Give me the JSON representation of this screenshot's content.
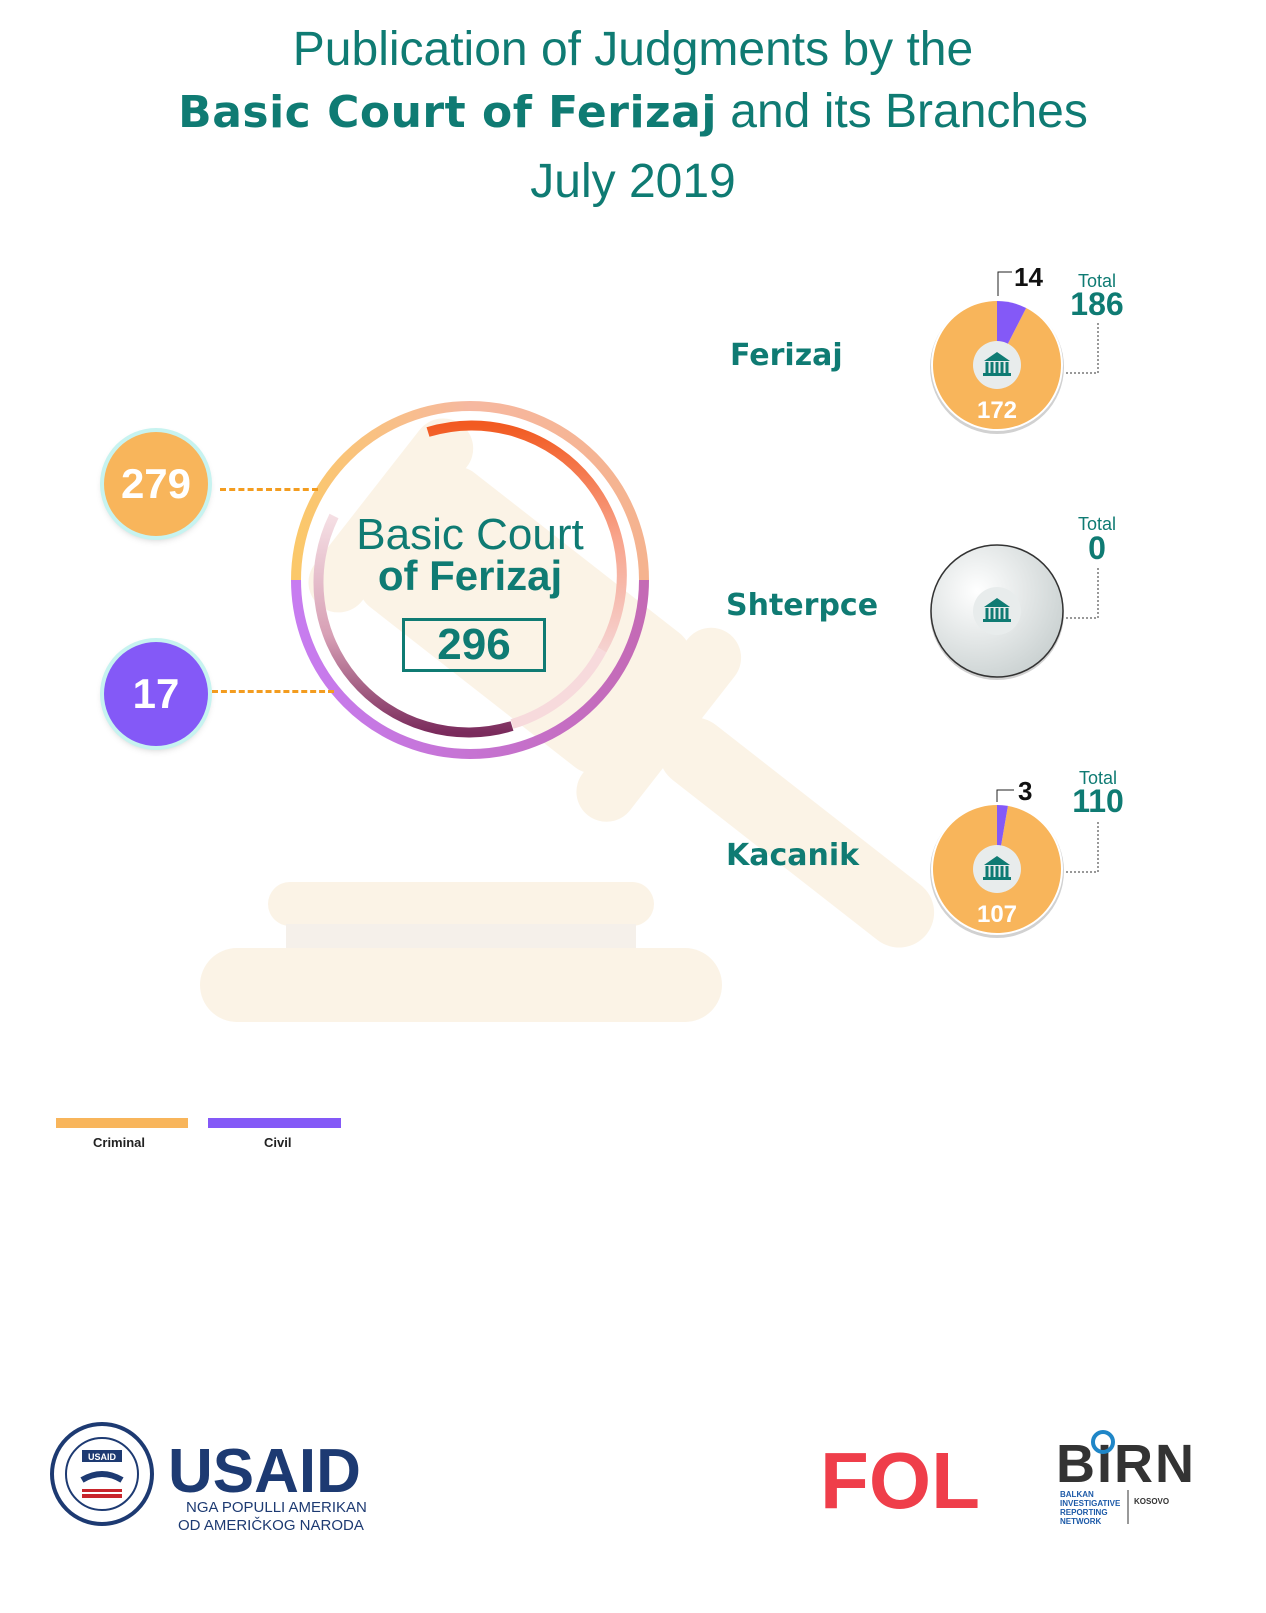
{
  "title": {
    "line1": "Publication of Judgments by the",
    "line2_bold": "Basic Court of Ferizaj",
    "line2_rest": " and its Branches",
    "line3": "July 2019"
  },
  "colors": {
    "criminal": "#f8b55b",
    "civil": "#8459f7",
    "teal": "#0f7b73"
  },
  "main_court": {
    "name_line1": "Basic Court",
    "name_line2": "of Ferizaj",
    "total": "296",
    "criminal": "279",
    "civil": "17"
  },
  "chart_data": {
    "type": "pie",
    "categories": [
      "Criminal",
      "Civil"
    ],
    "series": [
      {
        "branch": "Ferizaj",
        "values": [
          172,
          14
        ],
        "total": 186
      },
      {
        "branch": "Shterpce",
        "values": [
          0,
          0
        ],
        "total": 0
      },
      {
        "branch": "Kacanik",
        "values": [
          107,
          3
        ],
        "total": 110
      }
    ],
    "legend": [
      "Criminal",
      "Civil"
    ],
    "legend_position": "bottom-left"
  },
  "branches": [
    {
      "name": "Ferizaj",
      "criminal": "172",
      "civil": "14",
      "total_label": "Total",
      "total": "186"
    },
    {
      "name": "Shterpce",
      "criminal": "",
      "civil": "",
      "total_label": "Total",
      "total": "0"
    },
    {
      "name": "Kacanik",
      "criminal": "107",
      "civil": "3",
      "total_label": "Total",
      "total": "110"
    }
  ],
  "legend": {
    "criminal": "Criminal",
    "civil": "Civil"
  },
  "logos": {
    "usaid_word": "USAID",
    "usaid_tag1": "NGA POPULLI AMERIKAN",
    "usaid_tag2": "OD AMERIČKOG NARODA",
    "seal_badge": "USAID",
    "fol": "FOL",
    "birn": "BIRN",
    "birn_sub1": "BALKAN",
    "birn_sub2": "INVESTIGATIVE",
    "birn_sub3": "REPORTING",
    "birn_sub4": "NETWORK",
    "birn_country": "KOSOVO"
  },
  "icons": [
    "court-building-icon",
    "gavel-illustration"
  ]
}
